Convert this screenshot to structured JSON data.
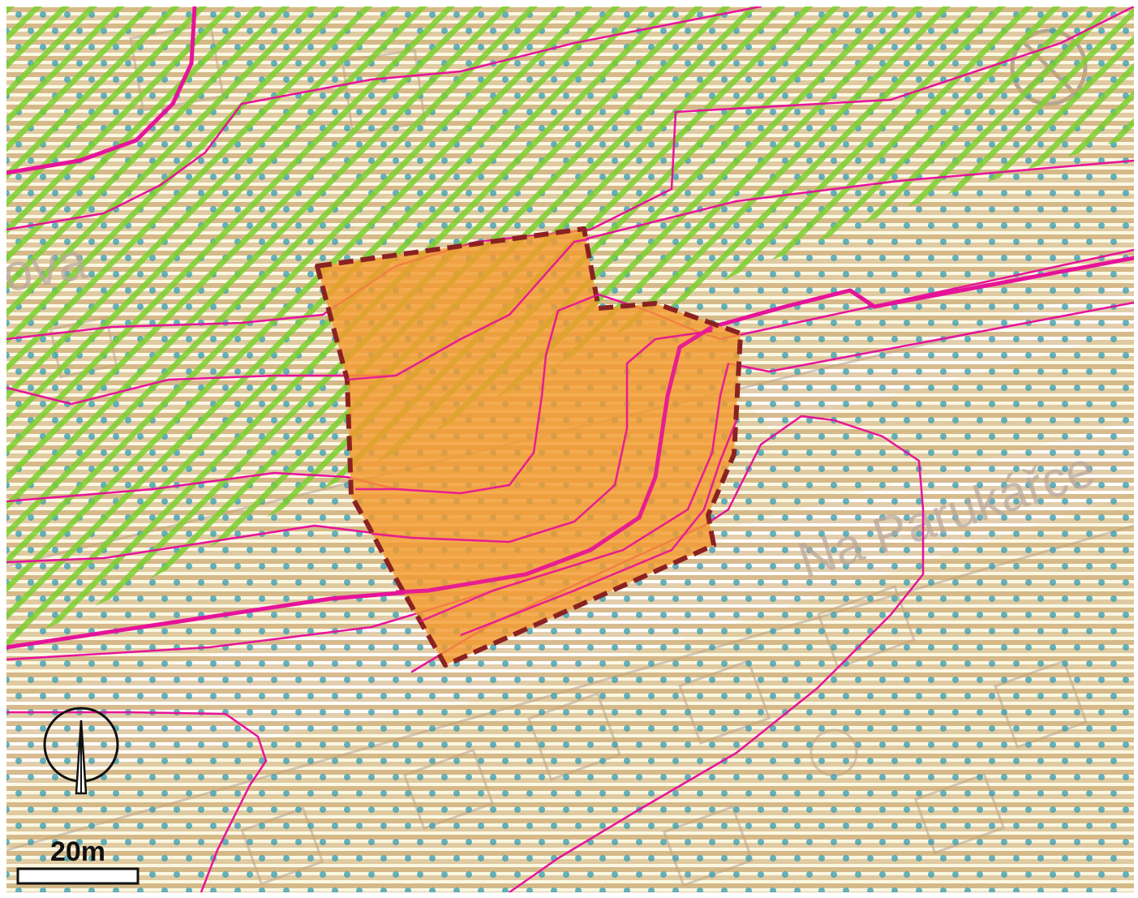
{
  "map": {
    "street_labels": [
      {
        "id": "street-label-ova",
        "text": "ova"
      },
      {
        "id": "street-label-na-parukarce",
        "text": "Na Parukářce"
      }
    ],
    "scale_bar": {
      "label": "20m"
    },
    "north_arrow": {
      "icon": "north-arrow-icon"
    },
    "colors": {
      "background": "#fbf8e2",
      "stripe": "#c9a46b",
      "dots": "#3f9fb0",
      "green_hatch": "#7ccf2e",
      "contours": "#e6139a",
      "area_fill": "#f39a2e",
      "area_border": "#8a2222"
    }
  }
}
